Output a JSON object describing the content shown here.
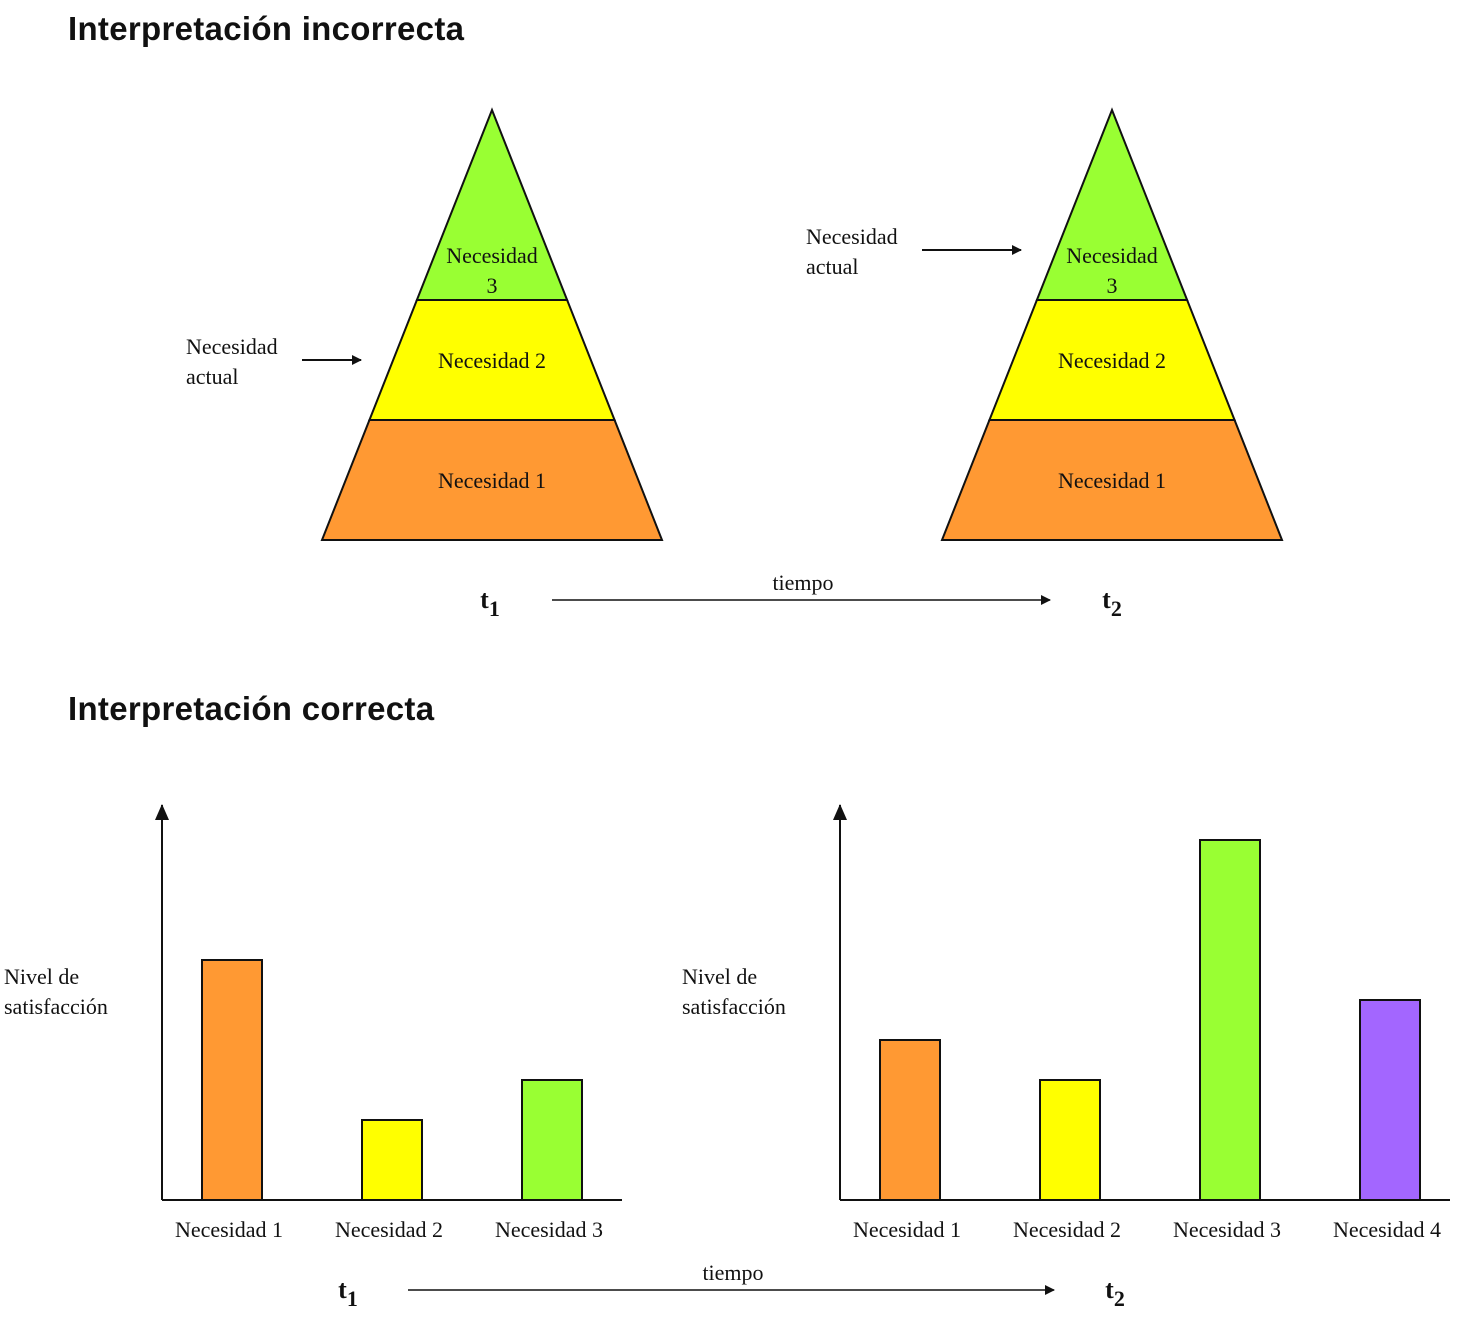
{
  "sections": {
    "incorrect_title": "Interpretación incorrecta",
    "correct_title": "Interpretación correcta"
  },
  "pyramids": [
    {
      "levels": [
        {
          "label": [
            "Necesidad 1"
          ],
          "color": "#FF9933"
        },
        {
          "label": [
            "Necesidad 2"
          ],
          "color": "#FFFF00"
        },
        {
          "label": [
            "Necesidad",
            "3"
          ],
          "color": "#99FF33"
        }
      ],
      "current_need_label": [
        "Necesidad",
        "actual"
      ],
      "current_need_points_to": "Necesidad 2",
      "time_label": "t",
      "time_subscript": "1"
    },
    {
      "levels": [
        {
          "label": [
            "Necesidad 1"
          ],
          "color": "#FF9933"
        },
        {
          "label": [
            "Necesidad 2"
          ],
          "color": "#FFFF00"
        },
        {
          "label": [
            "Necesidad",
            "3"
          ],
          "color": "#99FF33"
        }
      ],
      "current_need_label": [
        "Necesidad",
        "actual"
      ],
      "current_need_points_to": "Necesidad 3",
      "time_label": "t",
      "time_subscript": "2"
    }
  ],
  "time_axis_label": "tiempo",
  "chart_data": [
    {
      "type": "bar",
      "ylabel": [
        "Nivel de",
        "satisfacción"
      ],
      "categories": [
        "Necesidad 1",
        "Necesidad 2",
        "Necesidad 3"
      ],
      "values": [
        6,
        2,
        3
      ],
      "colors": [
        "#FF9933",
        "#FFFF00",
        "#99FF33"
      ],
      "ylim": [
        0,
        10
      ],
      "time_label": "t",
      "time_subscript": "1"
    },
    {
      "type": "bar",
      "ylabel": [
        "Nivel de",
        "satisfacción"
      ],
      "categories": [
        "Necesidad 1",
        "Necesidad 2",
        "Necesidad 3",
        "Necesidad 4"
      ],
      "values": [
        4,
        3,
        9,
        5
      ],
      "colors": [
        "#FF9933",
        "#FFFF00",
        "#99FF33",
        "#A366FF"
      ],
      "ylim": [
        0,
        10
      ],
      "time_label": "t",
      "time_subscript": "2"
    }
  ]
}
